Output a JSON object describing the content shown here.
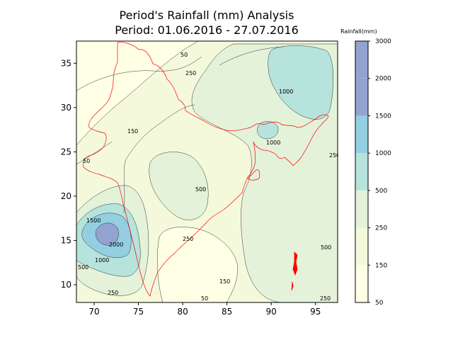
{
  "title": {
    "line1": "Period's Rainfall (mm) Analysis",
    "line2": "Period: 01.06.2016 - 27.07.2016"
  },
  "map": {
    "x_ticks": [
      70,
      75,
      80,
      85,
      90,
      95
    ],
    "y_ticks": [
      10,
      15,
      20,
      25,
      30,
      35
    ],
    "x_range": [
      68,
      97.5
    ],
    "y_range": [
      8,
      37.5
    ],
    "contour_labels": [
      "50",
      "150",
      "250",
      "500",
      "1000",
      "1500",
      "2000"
    ],
    "boundary_color": "#ff0000"
  },
  "colorbar": {
    "title": "Rainfall(mm)",
    "levels": [
      "50",
      "150",
      "250",
      "500",
      "1000",
      "1500",
      "2000",
      "3000"
    ],
    "colors": [
      "#ffffe5",
      "#f5f9dc",
      "#e3f2d8",
      "#b6e3dc",
      "#93cfe0",
      "#93a3cf"
    ]
  }
}
